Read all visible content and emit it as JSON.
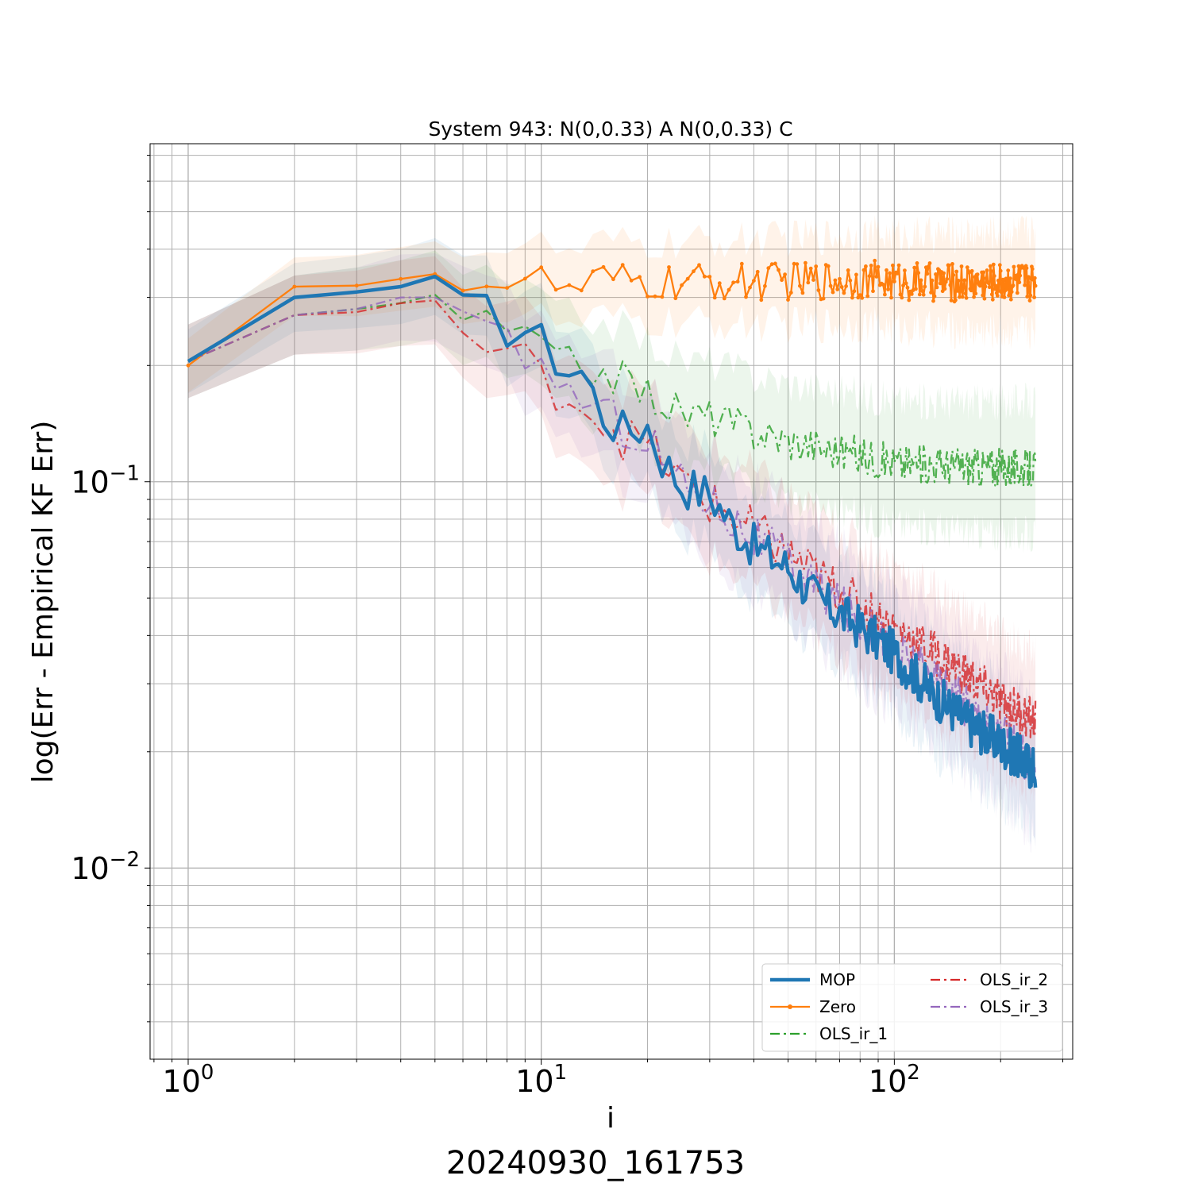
{
  "chart_data": {
    "type": "line",
    "title": "System 943: N(0,0.33) A N(0,0.33) C",
    "xlabel": "i",
    "ylabel": "log(Err - Empirical KF Err)",
    "footer": "20240930_161753",
    "x_scale": "log",
    "y_scale": "log",
    "xlim": [
      0.78,
      320
    ],
    "ylim": [
      0.0032,
      0.75
    ],
    "x_ticks": [
      {
        "value": 1,
        "base": "10",
        "exp": "0"
      },
      {
        "value": 10,
        "base": "10",
        "exp": "1"
      },
      {
        "value": 100,
        "base": "10",
        "exp": "2"
      }
    ],
    "y_ticks": [
      {
        "value": 0.01,
        "base": "10",
        "exp": "−2"
      },
      {
        "value": 0.1,
        "base": "10",
        "exp": "−1"
      }
    ],
    "grid": true,
    "legend_position": "lower right",
    "series": [
      {
        "name": "MOP",
        "color": "#1f77b4",
        "style": "solid",
        "marker": "none",
        "keypoints": [
          [
            1,
            0.205
          ],
          [
            2,
            0.3
          ],
          [
            3,
            0.31
          ],
          [
            4,
            0.32
          ],
          [
            5,
            0.34
          ],
          [
            6,
            0.28
          ],
          [
            7,
            0.275
          ],
          [
            8,
            0.25
          ],
          [
            9,
            0.25
          ],
          [
            10,
            0.228
          ],
          [
            11,
            0.21
          ],
          [
            12,
            0.195
          ],
          [
            13,
            0.193
          ],
          [
            15,
            0.15
          ],
          [
            17,
            0.135
          ],
          [
            20,
            0.14
          ],
          [
            22,
            0.115
          ],
          [
            25,
            0.098
          ],
          [
            30,
            0.093
          ],
          [
            35,
            0.077
          ],
          [
            40,
            0.068
          ],
          [
            50,
            0.06
          ],
          [
            60,
            0.05
          ],
          [
            80,
            0.042
          ],
          [
            100,
            0.036
          ],
          [
            130,
            0.028
          ],
          [
            160,
            0.024
          ],
          [
            200,
            0.021
          ],
          [
            250,
            0.018
          ]
        ],
        "noise": 0.06,
        "band": 0.3
      },
      {
        "name": "Zero",
        "color": "#ff7f0e",
        "style": "solid",
        "marker": "dot",
        "keypoints": [
          [
            1,
            0.2
          ],
          [
            2,
            0.32
          ],
          [
            3,
            0.322
          ],
          [
            4,
            0.335
          ],
          [
            5,
            0.345
          ],
          [
            6,
            0.335
          ],
          [
            7,
            0.325
          ],
          [
            8,
            0.332
          ],
          [
            10,
            0.33
          ],
          [
            12,
            0.31
          ],
          [
            15,
            0.33
          ],
          [
            20,
            0.325
          ],
          [
            30,
            0.328
          ],
          [
            50,
            0.33
          ],
          [
            80,
            0.335
          ],
          [
            100,
            0.33
          ],
          [
            150,
            0.328
          ],
          [
            250,
            0.33
          ]
        ],
        "noise": 0.05,
        "band": 0.25
      },
      {
        "name": "OLS_ir_1",
        "color": "#2ca02c",
        "style": "dashdot",
        "marker": "none",
        "keypoints": [
          [
            1,
            0.205
          ],
          [
            2,
            0.27
          ],
          [
            3,
            0.28
          ],
          [
            4,
            0.29
          ],
          [
            5,
            0.305
          ],
          [
            6,
            0.27
          ],
          [
            7,
            0.255
          ],
          [
            8,
            0.245
          ],
          [
            9,
            0.24
          ],
          [
            10,
            0.22
          ],
          [
            12,
            0.2
          ],
          [
            15,
            0.195
          ],
          [
            20,
            0.17
          ],
          [
            25,
            0.15
          ],
          [
            30,
            0.148
          ],
          [
            40,
            0.135
          ],
          [
            50,
            0.128
          ],
          [
            70,
            0.12
          ],
          [
            100,
            0.112
          ],
          [
            150,
            0.11
          ],
          [
            250,
            0.108
          ]
        ],
        "noise": 0.05,
        "band": 0.35
      },
      {
        "name": "OLS_ir_2",
        "color": "#d62728",
        "style": "dashdot",
        "marker": "none",
        "keypoints": [
          [
            1,
            0.205
          ],
          [
            2,
            0.27
          ],
          [
            3,
            0.275
          ],
          [
            4,
            0.29
          ],
          [
            5,
            0.295
          ],
          [
            6,
            0.24
          ],
          [
            7,
            0.22
          ],
          [
            8,
            0.21
          ],
          [
            9,
            0.205
          ],
          [
            10,
            0.185
          ],
          [
            12,
            0.168
          ],
          [
            15,
            0.145
          ],
          [
            17,
            0.13
          ],
          [
            20,
            0.125
          ],
          [
            25,
            0.1
          ],
          [
            30,
            0.088
          ],
          [
            40,
            0.075
          ],
          [
            50,
            0.065
          ],
          [
            70,
            0.052
          ],
          [
            100,
            0.042
          ],
          [
            150,
            0.033
          ],
          [
            200,
            0.027
          ],
          [
            250,
            0.024
          ]
        ],
        "noise": 0.06,
        "band": 0.35
      },
      {
        "name": "OLS_ir_3",
        "color": "#9467bd",
        "style": "dashdot",
        "marker": "none",
        "keypoints": [
          [
            1,
            0.205
          ],
          [
            2,
            0.27
          ],
          [
            3,
            0.28
          ],
          [
            4,
            0.3
          ],
          [
            5,
            0.3
          ],
          [
            6,
            0.26
          ],
          [
            7,
            0.235
          ],
          [
            8,
            0.225
          ],
          [
            9,
            0.22
          ],
          [
            10,
            0.195
          ],
          [
            12,
            0.175
          ],
          [
            15,
            0.15
          ],
          [
            20,
            0.13
          ],
          [
            25,
            0.1
          ],
          [
            30,
            0.09
          ],
          [
            40,
            0.072
          ],
          [
            50,
            0.062
          ],
          [
            70,
            0.048
          ],
          [
            100,
            0.037
          ],
          [
            150,
            0.028
          ],
          [
            200,
            0.022
          ],
          [
            250,
            0.018
          ]
        ],
        "noise": 0.06,
        "band": 0.35
      }
    ]
  }
}
